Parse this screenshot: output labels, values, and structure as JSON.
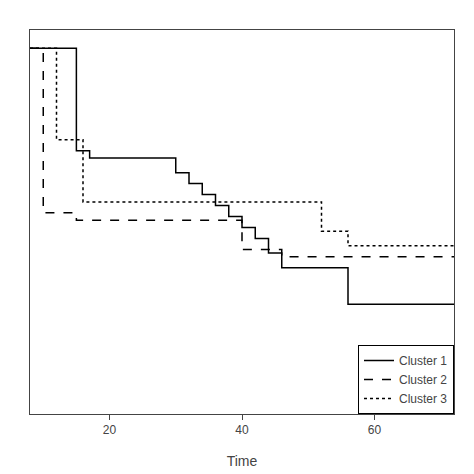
{
  "chart_data": {
    "type": "step",
    "xlabel": "Time",
    "xlim": [
      8,
      72
    ],
    "ylim": [
      0,
      1.05
    ],
    "xticks": [
      20,
      40,
      60
    ],
    "grid": false,
    "legend": "lower right",
    "tick_labels": "x",
    "series": [
      {
        "name": "Cluster 1",
        "color": "#000000",
        "line_style": "solid",
        "x": [
          8,
          15,
          15,
          17,
          17,
          30,
          30,
          32,
          32,
          34,
          34,
          36,
          36,
          38,
          38,
          40,
          40,
          42,
          42,
          44,
          44,
          46,
          46,
          56,
          56,
          72
        ],
        "values": [
          1.0,
          1.0,
          0.72,
          0.72,
          0.7,
          0.7,
          0.66,
          0.66,
          0.63,
          0.63,
          0.6,
          0.6,
          0.57,
          0.57,
          0.54,
          0.54,
          0.51,
          0.51,
          0.48,
          0.48,
          0.44,
          0.44,
          0.4,
          0.4,
          0.3,
          0.3
        ]
      },
      {
        "name": "Cluster 2",
        "color": "#000000",
        "line_style": "dashed",
        "x": [
          8,
          10,
          10,
          15,
          15,
          40,
          40,
          46,
          46,
          72
        ],
        "values": [
          1.0,
          1.0,
          0.55,
          0.55,
          0.53,
          0.53,
          0.45,
          0.45,
          0.43,
          0.43
        ]
      },
      {
        "name": "Cluster 3",
        "color": "#000000",
        "line_style": "dotted",
        "x": [
          8,
          12,
          12,
          16,
          16,
          52,
          52,
          56,
          56,
          72
        ],
        "values": [
          1.0,
          1.0,
          0.75,
          0.75,
          0.58,
          0.58,
          0.5,
          0.5,
          0.46,
          0.46
        ]
      }
    ]
  }
}
